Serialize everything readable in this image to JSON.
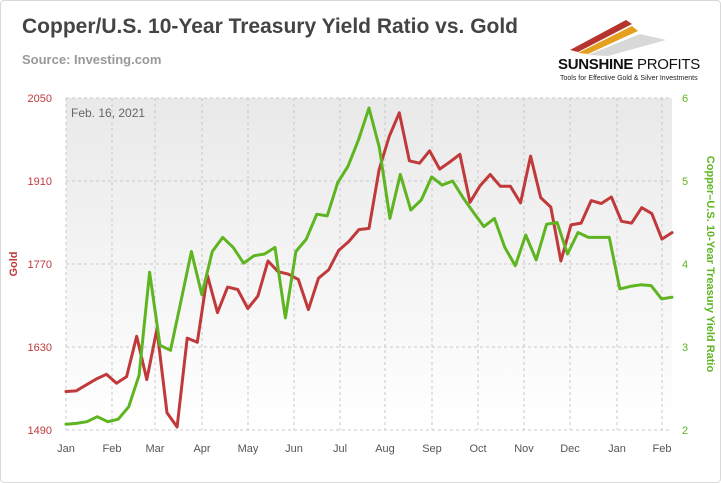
{
  "header": {
    "title": "Copper/U.S. 10-Year Treasury Yield Ratio vs. Gold",
    "source": "Source: Investing.com"
  },
  "logo": {
    "brand_bold": "SUNSHINE",
    "brand_light": "PROFITS",
    "tagline": "Tools for Effective Gold & Silver Investments"
  },
  "colors": {
    "gold": "#c0393b",
    "ratio": "#5eb521",
    "grid": "#c8c8c8",
    "text": "#555555"
  },
  "chart_data": {
    "type": "line",
    "title": "Copper/U.S. 10-Year Treasury Yield Ratio vs. Gold",
    "annotation": "Feb. 16, 2021",
    "x_ticks": [
      "Jan",
      "Feb",
      "Mar",
      "Apr",
      "May",
      "Jun",
      "Jul",
      "Aug",
      "Sep",
      "Oct",
      "Nov",
      "Dec",
      "Jan",
      "Feb"
    ],
    "y_left": {
      "label": "Gold",
      "ticks": [
        1490,
        1630,
        1770,
        1910,
        2050
      ],
      "range": [
        1490,
        2050
      ]
    },
    "y_right": {
      "label": "Copper–U.S. 10-Year Treasury Yield Ratio",
      "ticks": [
        2,
        3,
        4,
        5,
        6
      ],
      "range": [
        2,
        6
      ]
    },
    "grid": true,
    "series": [
      {
        "name": "Gold",
        "axis": "left",
        "values": [
          1555,
          1556,
          1566,
          1576,
          1584,
          1569,
          1580,
          1648,
          1575,
          1660,
          1519,
          1495,
          1645,
          1638,
          1751,
          1688,
          1731,
          1727,
          1695,
          1716,
          1775,
          1757,
          1753,
          1744,
          1693,
          1746,
          1760,
          1793,
          1808,
          1828,
          1830,
          1929,
          1985,
          2025,
          1944,
          1940,
          1961,
          1930,
          1942,
          1955,
          1874,
          1902,
          1921,
          1901,
          1901,
          1873,
          1952,
          1882,
          1866,
          1775,
          1836,
          1839,
          1877,
          1872,
          1883,
          1842,
          1839,
          1865,
          1855,
          1812,
          1823
        ]
      },
      {
        "name": "Copper–U.S. 10-Year Treasury Yield Ratio",
        "axis": "right",
        "values": [
          2.07,
          2.08,
          2.1,
          2.16,
          2.1,
          2.13,
          2.28,
          2.66,
          3.9,
          3.02,
          2.96,
          3.55,
          4.15,
          3.63,
          4.15,
          4.32,
          4.2,
          4.01,
          4.1,
          4.12,
          4.2,
          3.35,
          4.15,
          4.3,
          4.6,
          4.58,
          4.98,
          5.18,
          5.5,
          5.88,
          5.4,
          4.55,
          5.08,
          4.65,
          4.77,
          5.05,
          4.95,
          5.0,
          4.8,
          4.62,
          4.45,
          4.55,
          4.2,
          3.98,
          4.35,
          4.05,
          4.48,
          4.5,
          4.12,
          4.38,
          4.32,
          4.32,
          4.32,
          3.7,
          3.73,
          3.75,
          3.74,
          3.58,
          3.6
        ]
      }
    ]
  }
}
